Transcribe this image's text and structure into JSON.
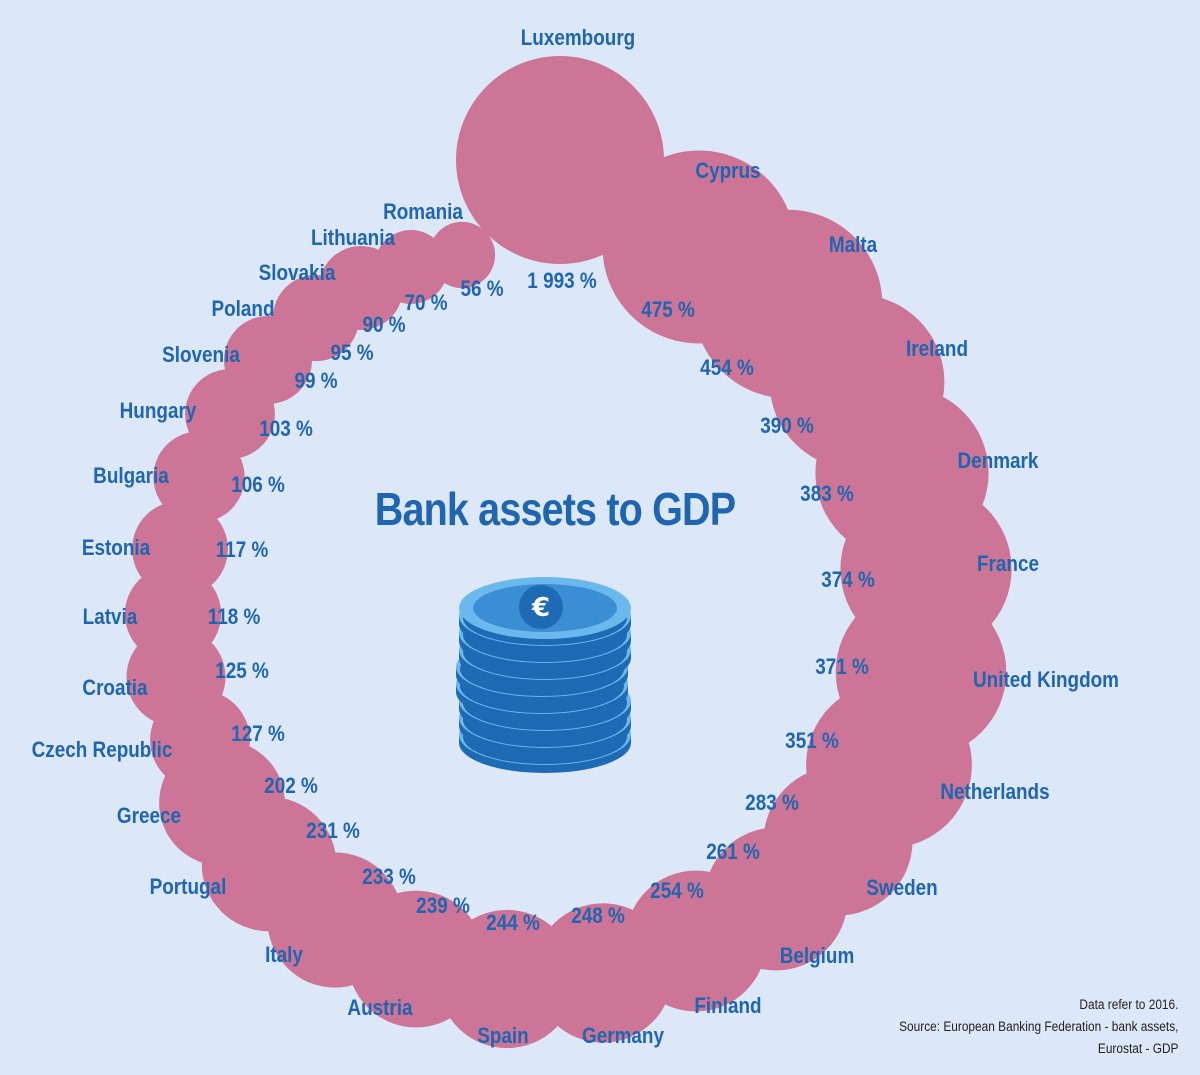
{
  "chart_data": {
    "type": "bubble",
    "title": "Bank assets to GDP",
    "unit": "%",
    "colors": {
      "bubble": "#cc7597",
      "text": "#1f65b0",
      "background": "#dce8f8",
      "coin_dark": "#1f6ab5",
      "coin_light": "#6bb8ec",
      "coin_face": "#3b8ed3"
    },
    "icon": "euro-coin-stack-icon",
    "items": [
      {
        "country": "Luxembourg",
        "value": 1993,
        "label": "1 993 %"
      },
      {
        "country": "Cyprus",
        "value": 475,
        "label": "475 %"
      },
      {
        "country": "Malta",
        "value": 454,
        "label": "454 %"
      },
      {
        "country": "Ireland",
        "value": 390,
        "label": "390 %"
      },
      {
        "country": "Denmark",
        "value": 383,
        "label": "383 %"
      },
      {
        "country": "France",
        "value": 374,
        "label": "374 %"
      },
      {
        "country": "United Kingdom",
        "value": 371,
        "label": "371 %"
      },
      {
        "country": "Netherlands",
        "value": 351,
        "label": "351 %"
      },
      {
        "country": "Sweden",
        "value": 283,
        "label": "283 %"
      },
      {
        "country": "Belgium",
        "value": 261,
        "label": "261 %"
      },
      {
        "country": "Finland",
        "value": 254,
        "label": "254 %"
      },
      {
        "country": "Germany",
        "value": 248,
        "label": "248 %"
      },
      {
        "country": "Spain",
        "value": 244,
        "label": "244 %"
      },
      {
        "country": "Austria",
        "value": 239,
        "label": "239 %"
      },
      {
        "country": "Italy",
        "value": 233,
        "label": "233 %"
      },
      {
        "country": "Portugal",
        "value": 231,
        "label": "231 %"
      },
      {
        "country": "Greece",
        "value": 202,
        "label": "202 %"
      },
      {
        "country": "Czech Republic",
        "value": 127,
        "label": "127 %"
      },
      {
        "country": "Croatia",
        "value": 125,
        "label": "125 %"
      },
      {
        "country": "Latvia",
        "value": 118,
        "label": "118 %"
      },
      {
        "country": "Estonia",
        "value": 117,
        "label": "117 %"
      },
      {
        "country": "Bulgaria",
        "value": 106,
        "label": "106 %"
      },
      {
        "country": "Hungary",
        "value": 103,
        "label": "103 %"
      },
      {
        "country": "Slovenia",
        "value": 99,
        "label": "99 %"
      },
      {
        "country": "Poland",
        "value": 95,
        "label": "95 %"
      },
      {
        "country": "Slovakia",
        "value": 90,
        "label": "90 %"
      },
      {
        "country": "Lithuania",
        "value": 70,
        "label": "70 %"
      },
      {
        "country": "Romania",
        "value": 56,
        "label": "56 %"
      }
    ]
  },
  "footnote": {
    "line1": "Data refer to 2016.",
    "line2": "Source: European Banking Federation - bank assets,",
    "line3": "Eurostat - GDP"
  }
}
